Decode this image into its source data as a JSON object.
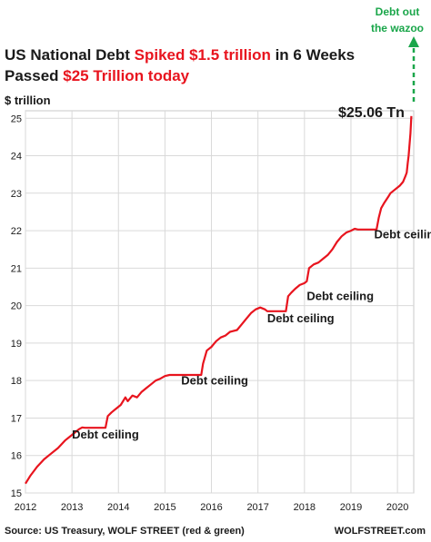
{
  "chart_data": {
    "type": "line",
    "title": {
      "line1": [
        {
          "text": "US National Debt ",
          "color": "#1a1a1a"
        },
        {
          "text": "Spiked $1.5 trillion",
          "color": "#e8141e"
        },
        {
          "text": " in 6 Weeks",
          "color": "#1a1a1a"
        }
      ],
      "line2": [
        {
          "text": "Passed ",
          "color": "#1a1a1a"
        },
        {
          "text": "$25 Trillion today",
          "color": "#e8141e"
        }
      ]
    },
    "ylabel": "$ trillion",
    "ylim": [
      15,
      25.2
    ],
    "yticks": [
      "15",
      "16",
      "17",
      "18",
      "19",
      "20",
      "21",
      "22",
      "23",
      "24",
      "25"
    ],
    "xlim": [
      2012.0,
      2020.35
    ],
    "xticks": [
      "2012",
      "2013",
      "2014",
      "2015",
      "2016",
      "2017",
      "2018",
      "2019",
      "2020"
    ],
    "grid": true,
    "series": [
      {
        "color": "#e8141e",
        "points": [
          [
            2012.0,
            15.25
          ],
          [
            2012.1,
            15.45
          ],
          [
            2012.25,
            15.7
          ],
          [
            2012.4,
            15.9
          ],
          [
            2012.55,
            16.05
          ],
          [
            2012.7,
            16.2
          ],
          [
            2012.85,
            16.4
          ],
          [
            2012.95,
            16.5
          ],
          [
            2013.05,
            16.6
          ],
          [
            2013.15,
            16.7
          ],
          [
            2013.22,
            16.75
          ],
          [
            2013.28,
            16.74
          ],
          [
            2013.72,
            16.74
          ],
          [
            2013.77,
            17.05
          ],
          [
            2013.85,
            17.15
          ],
          [
            2013.95,
            17.25
          ],
          [
            2014.05,
            17.35
          ],
          [
            2014.15,
            17.55
          ],
          [
            2014.2,
            17.45
          ],
          [
            2014.3,
            17.6
          ],
          [
            2014.4,
            17.55
          ],
          [
            2014.5,
            17.7
          ],
          [
            2014.6,
            17.8
          ],
          [
            2014.7,
            17.9
          ],
          [
            2014.8,
            18.0
          ],
          [
            2014.9,
            18.05
          ],
          [
            2015.0,
            18.12
          ],
          [
            2015.1,
            18.15
          ],
          [
            2015.2,
            18.15
          ],
          [
            2015.78,
            18.15
          ],
          [
            2015.82,
            18.45
          ],
          [
            2015.9,
            18.8
          ],
          [
            2016.0,
            18.9
          ],
          [
            2016.1,
            19.05
          ],
          [
            2016.2,
            19.15
          ],
          [
            2016.3,
            19.2
          ],
          [
            2016.4,
            19.3
          ],
          [
            2016.55,
            19.35
          ],
          [
            2016.65,
            19.5
          ],
          [
            2016.75,
            19.65
          ],
          [
            2016.85,
            19.8
          ],
          [
            2016.95,
            19.9
          ],
          [
            2017.05,
            19.95
          ],
          [
            2017.15,
            19.9
          ],
          [
            2017.2,
            19.85
          ],
          [
            2017.6,
            19.85
          ],
          [
            2017.65,
            20.25
          ],
          [
            2017.72,
            20.35
          ],
          [
            2017.8,
            20.45
          ],
          [
            2017.9,
            20.55
          ],
          [
            2018.0,
            20.6
          ],
          [
            2018.05,
            20.65
          ],
          [
            2018.1,
            21.0
          ],
          [
            2018.2,
            21.1
          ],
          [
            2018.3,
            21.15
          ],
          [
            2018.4,
            21.25
          ],
          [
            2018.5,
            21.35
          ],
          [
            2018.6,
            21.5
          ],
          [
            2018.7,
            21.7
          ],
          [
            2018.8,
            21.85
          ],
          [
            2018.9,
            21.95
          ],
          [
            2019.0,
            22.0
          ],
          [
            2019.08,
            22.05
          ],
          [
            2019.15,
            22.03
          ],
          [
            2019.55,
            22.03
          ],
          [
            2019.6,
            22.35
          ],
          [
            2019.65,
            22.6
          ],
          [
            2019.72,
            22.75
          ],
          [
            2019.8,
            22.9
          ],
          [
            2019.85,
            23.0
          ],
          [
            2019.95,
            23.1
          ],
          [
            2020.05,
            23.2
          ],
          [
            2020.12,
            23.3
          ],
          [
            2020.17,
            23.45
          ],
          [
            2020.2,
            23.55
          ],
          [
            2020.22,
            23.8
          ],
          [
            2020.24,
            24.0
          ],
          [
            2020.26,
            24.3
          ],
          [
            2020.28,
            24.6
          ],
          [
            2020.3,
            25.06
          ]
        ]
      }
    ],
    "annotations": {
      "debt_ceiling_label": "Debt ceiling",
      "value_label": "$25.06 Tn",
      "wazoo_line1": "Debt out",
      "wazoo_line2": "the wazoo",
      "wazoo_color": "#1aa64a"
    },
    "ceilings": [
      {
        "x": 2013.5,
        "y": 16.74,
        "label_x": 2013.0,
        "label_y": 16.45
      },
      {
        "x": 2015.5,
        "y": 18.15,
        "label_x": 2015.35,
        "label_y": 17.9
      },
      {
        "x": 2017.4,
        "y": 19.85,
        "label_x": 2017.2,
        "label_y": 19.55
      },
      {
        "x": 2017.75,
        "y": 20.5,
        "label_x": 2018.05,
        "label_y": 20.15
      },
      {
        "x": 2019.3,
        "y": 22.03,
        "label_x": 2019.5,
        "label_y": 21.8
      }
    ],
    "source": "Source: US Treasury, WOLF STREET (red & green)",
    "brand": "WOLFSTREET.com"
  }
}
